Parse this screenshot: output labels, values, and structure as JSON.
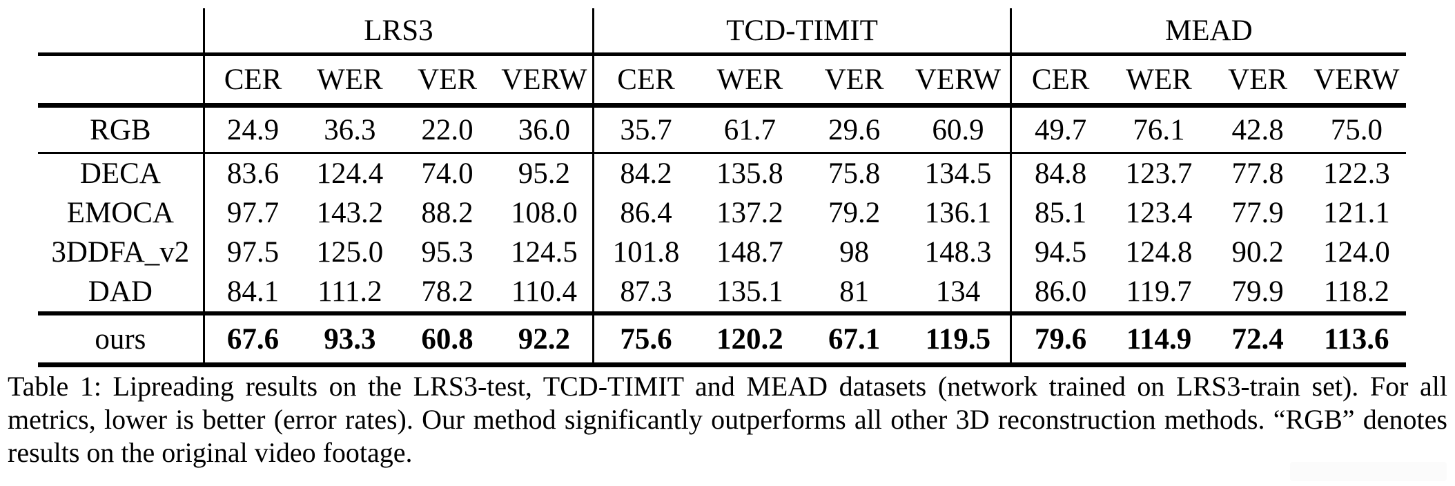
{
  "table": {
    "groups": [
      {
        "label": "LRS3"
      },
      {
        "label": "TCD-TIMIT"
      },
      {
        "label": "MEAD"
      }
    ],
    "metrics": [
      "CER",
      "WER",
      "VER",
      "VERW"
    ],
    "rows": [
      {
        "label": "RGB",
        "section": "rgb",
        "bold": false,
        "values": [
          "24.9",
          "36.3",
          "22.0",
          "36.0",
          "35.7",
          "61.7",
          "29.6",
          "60.9",
          "49.7",
          "76.1",
          "42.8",
          "75.0"
        ]
      },
      {
        "label": "DECA",
        "section": "methods",
        "bold": false,
        "values": [
          "83.6",
          "124.4",
          "74.0",
          "95.2",
          "84.2",
          "135.8",
          "75.8",
          "134.5",
          "84.8",
          "123.7",
          "77.8",
          "122.3"
        ]
      },
      {
        "label": "EMOCA",
        "section": "methods",
        "bold": false,
        "values": [
          "97.7",
          "143.2",
          "88.2",
          "108.0",
          "86.4",
          "137.2",
          "79.2",
          "136.1",
          "85.1",
          "123.4",
          "77.9",
          "121.1"
        ]
      },
      {
        "label": "3DDFA_v2",
        "section": "methods",
        "bold": false,
        "values": [
          "97.5",
          "125.0",
          "95.3",
          "124.5",
          "101.8",
          "148.7",
          "98",
          "148.3",
          "94.5",
          "124.8",
          "90.2",
          "124.0"
        ]
      },
      {
        "label": "DAD",
        "section": "methods",
        "bold": false,
        "values": [
          "84.1",
          "111.2",
          "78.2",
          "110.4",
          "87.3",
          "135.1",
          "81",
          "134",
          "86.0",
          "119.7",
          "79.9",
          "118.2"
        ]
      },
      {
        "label": "ours",
        "section": "ours",
        "bold": true,
        "values": [
          "67.6",
          "93.3",
          "60.8",
          "92.2",
          "75.6",
          "120.2",
          "67.1",
          "119.5",
          "79.6",
          "114.9",
          "72.4",
          "113.6"
        ]
      }
    ]
  },
  "caption": {
    "text": "Table 1: Lipreading results on the LRS3-test, TCD-TIMIT and MEAD datasets (network trained on LRS3-train set). For all metrics, lower is better (error rates). Our method significantly outperforms all other 3D reconstruction methods. “RGB” denotes results on the original video footage."
  }
}
